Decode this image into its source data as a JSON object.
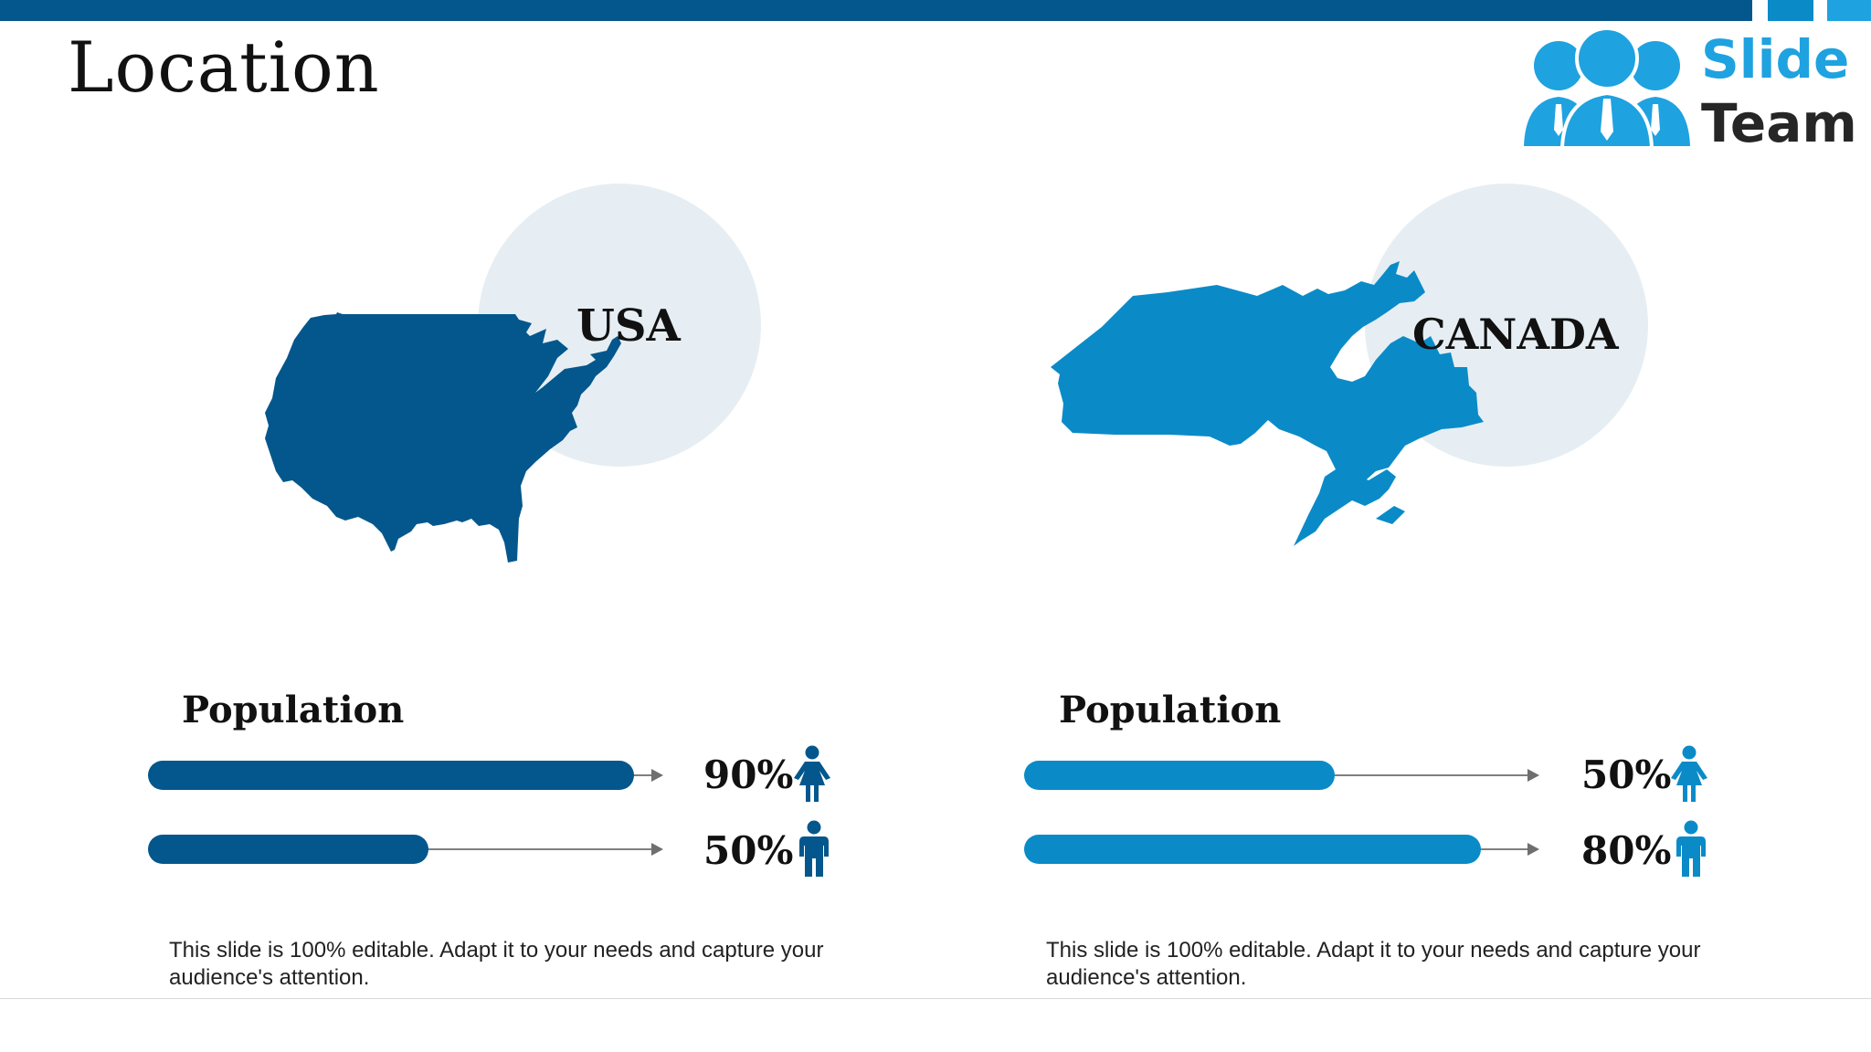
{
  "title": "Location",
  "logo": {
    "line1": "Slide",
    "line2": "Team"
  },
  "colors": {
    "usa": "#04578c",
    "canada": "#0a8bc8",
    "circle": "#e6eef3"
  },
  "usa": {
    "name": "USA",
    "population_label": "Population",
    "bars": [
      {
        "percent_label": "90%",
        "fill": 0.9,
        "icon": "female-icon"
      },
      {
        "percent_label": "50%",
        "fill": 0.5,
        "icon": "male-icon"
      }
    ],
    "description": "This slide is 100% editable. Adapt it to your needs and capture your audience's attention."
  },
  "canada": {
    "name": "CANADA",
    "population_label": "Population",
    "bars": [
      {
        "percent_label": "50%",
        "fill": 0.5,
        "icon": "female-icon"
      },
      {
        "percent_label": "80%",
        "fill": 0.8,
        "icon": "male-icon"
      }
    ],
    "description": "This slide is 100% editable. Adapt it to your needs and capture your audience's attention."
  }
}
